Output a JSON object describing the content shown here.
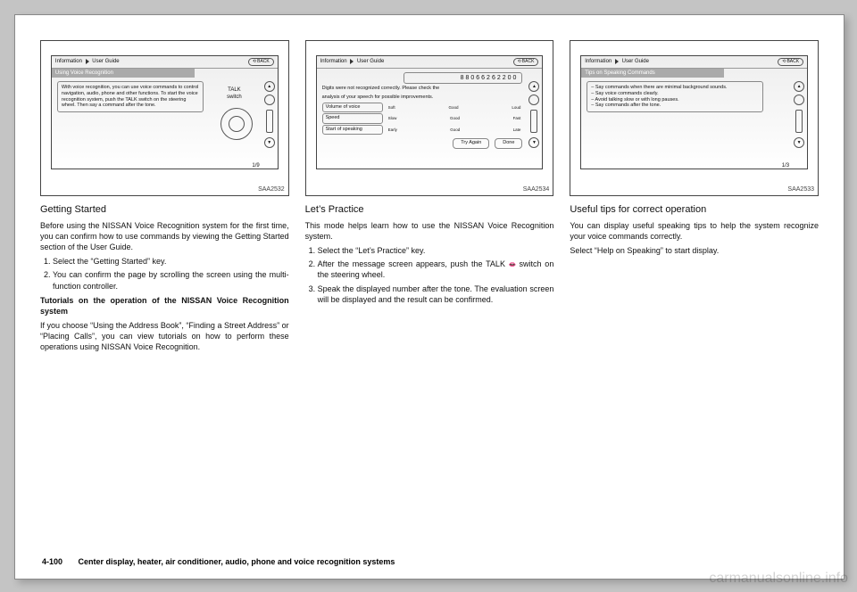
{
  "fig1": {
    "code": "SAA2532",
    "header_left": "Information",
    "header_right": "User Guide",
    "back": "BACK",
    "tab": "Using Voice Recognition",
    "box_text": "With voice recognition, you can use voice commands to control navigation, audio, phone and other functions. To start the voice recognition system, push the TALK switch on the steering wheel. Then say a command after the tone.",
    "talk_label_top": "TALK",
    "talk_label_bottom": "switch",
    "page_indicator": "1/9"
  },
  "fig2": {
    "code": "SAA2534",
    "header_left": "Information",
    "header_right": "User Guide",
    "back": "BACK",
    "number": "88066262200",
    "msg1": "Digits were not recognized correctly. Please check the",
    "msg2": "analysis of your speech for possible improvements.",
    "rows": [
      {
        "label": "Volume of voice",
        "l": "Soft",
        "m": "Good",
        "r": "Loud"
      },
      {
        "label": "Speed",
        "l": "Slow",
        "m": "Good",
        "r": "Fast"
      },
      {
        "label": "Start of speaking",
        "l": "Early",
        "m": "Good",
        "r": "Late"
      }
    ],
    "btn_try": "Try Again",
    "btn_done": "Done"
  },
  "fig3": {
    "code": "SAA2533",
    "header_left": "Information",
    "header_right": "User Guide",
    "back": "BACK",
    "tab": "Tips on Speaking Commands",
    "lines": [
      "– Say commands when there are minimal background sounds.",
      "– Say voice commands clearly.",
      "– Avoid talking slow or with long pauses.",
      "– Say commands after the tone."
    ],
    "page_indicator": "1/3"
  },
  "col1": {
    "h": "Getting Started",
    "p1": "Before using the NISSAN Voice Recognition system for the first time, you can confirm how to use commands by viewing the Getting Started section of the User Guide.",
    "li1": "Select the “Getting Started” key.",
    "li2": "You can confirm the page by scrolling the screen using the multi-function controller.",
    "sub": "Tutorials on the operation of the NISSAN Voice Recognition system",
    "p2": "If you choose “Using the Address Book”, “Finding a Street Address” or “Placing Calls”, you can view tutorials on how to perform these operations using NISSAN Voice Recognition."
  },
  "col2": {
    "h": "Let’s Practice",
    "p1": "This mode helps learn how to use the NISSAN Voice Recognition system.",
    "li1": "Select the “Let’s Practice” key.",
    "li2a": "After the message screen appears, push the TALK ",
    "li2b": " switch on the steering wheel.",
    "li3": "Speak the displayed number after the tone. The evaluation screen will be displayed and the result can be confirmed."
  },
  "col3": {
    "h": "Useful tips for correct operation",
    "p1": "You can display useful speaking tips to help the system recognize your voice commands correctly.",
    "p2": "Select “Help on Speaking” to start display."
  },
  "footer": {
    "page": "4-100",
    "section": "Center display, heater, air conditioner, audio, phone and voice recognition systems"
  },
  "watermark": "carmanualsonline.info"
}
